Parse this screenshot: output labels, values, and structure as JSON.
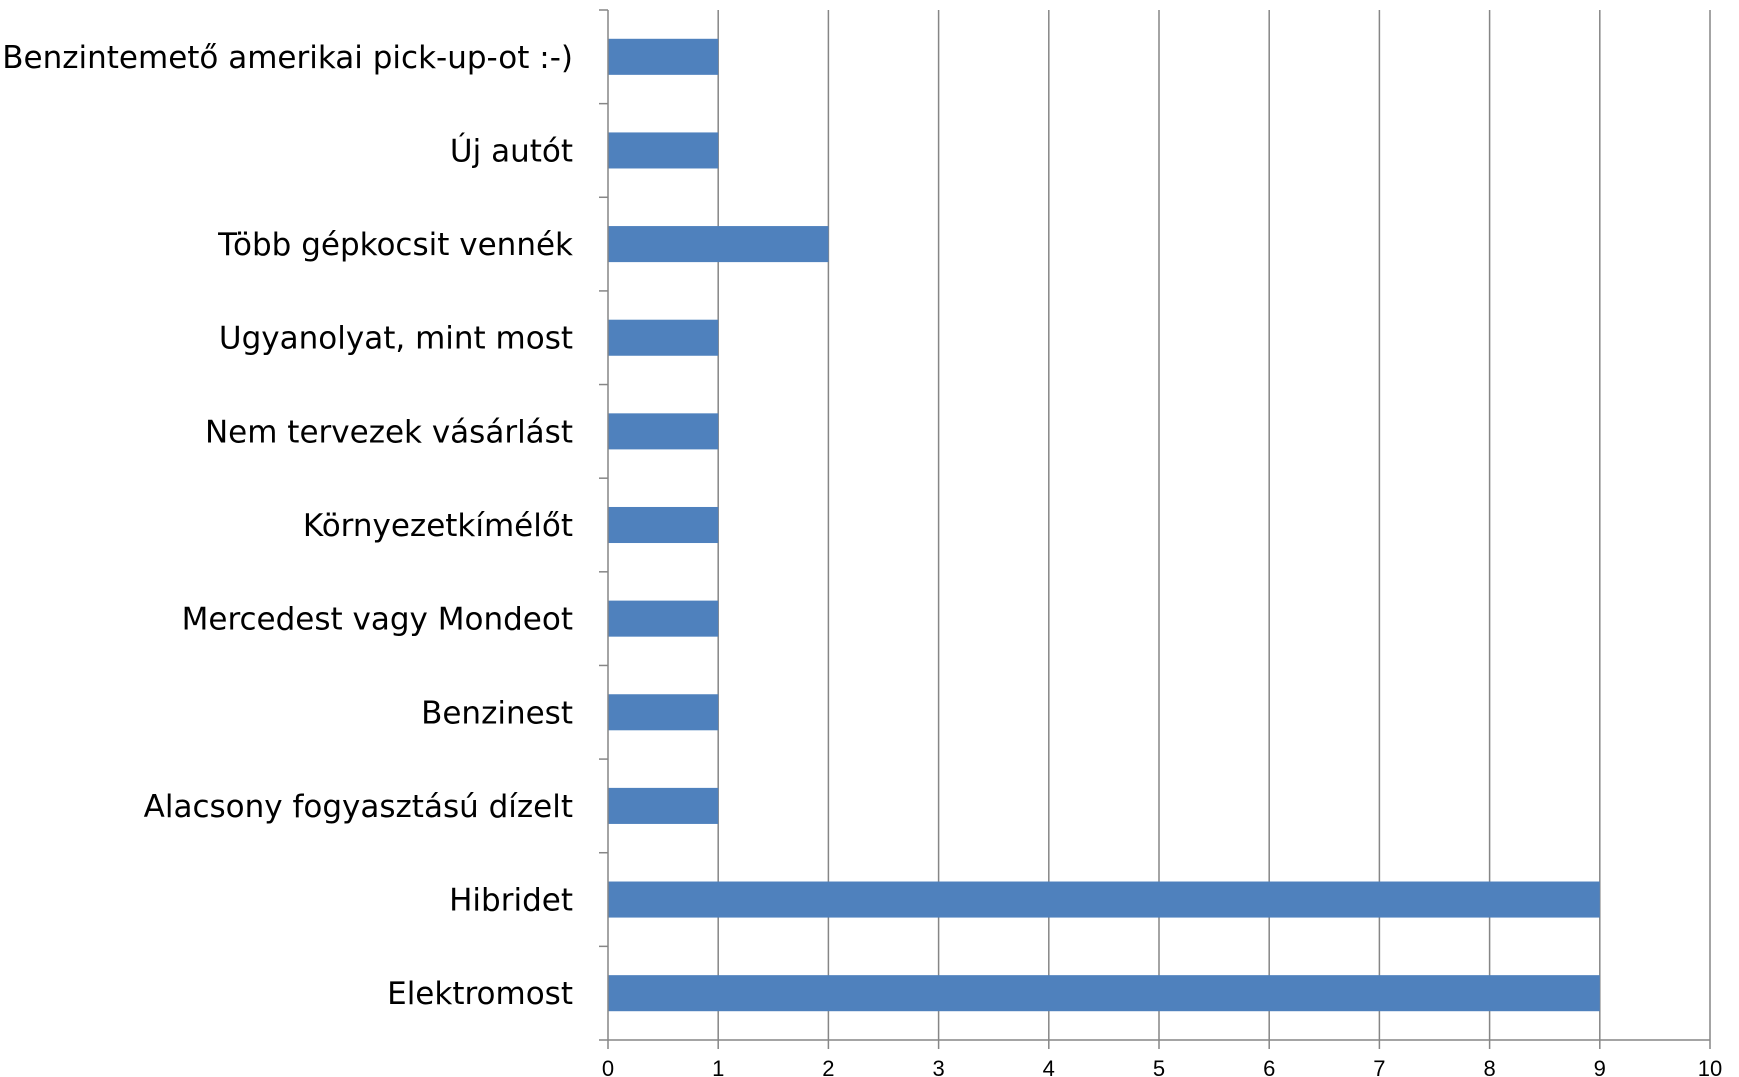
{
  "chart_data": {
    "type": "bar",
    "orientation": "horizontal",
    "title": "",
    "xlabel": "",
    "ylabel": "",
    "categories": [
      "Benzintemető amerikai pick-up-ot :-)",
      "Új autót",
      "Több gépkocsit vennék",
      "Ugyanolyat, mint most",
      "Nem tervezek vásárlást",
      "Környezetkímélőt",
      "Mercedest vagy Mondeot",
      "Benzinest",
      "Alacsony fogyasztású dízelt",
      "Hibridet",
      "Elektromost"
    ],
    "values": [
      1,
      1,
      2,
      1,
      1,
      1,
      1,
      1,
      1,
      9,
      9
    ],
    "xlim": [
      0,
      10
    ],
    "xticks": [
      "0",
      "1",
      "2",
      "3",
      "4",
      "5",
      "6",
      "7",
      "8",
      "9",
      "10"
    ],
    "grid": "vertical",
    "legend": "none",
    "colors": {
      "bar": "#4F81BD",
      "grid": "#868686",
      "axis": "#868686",
      "text": "#000000"
    }
  }
}
